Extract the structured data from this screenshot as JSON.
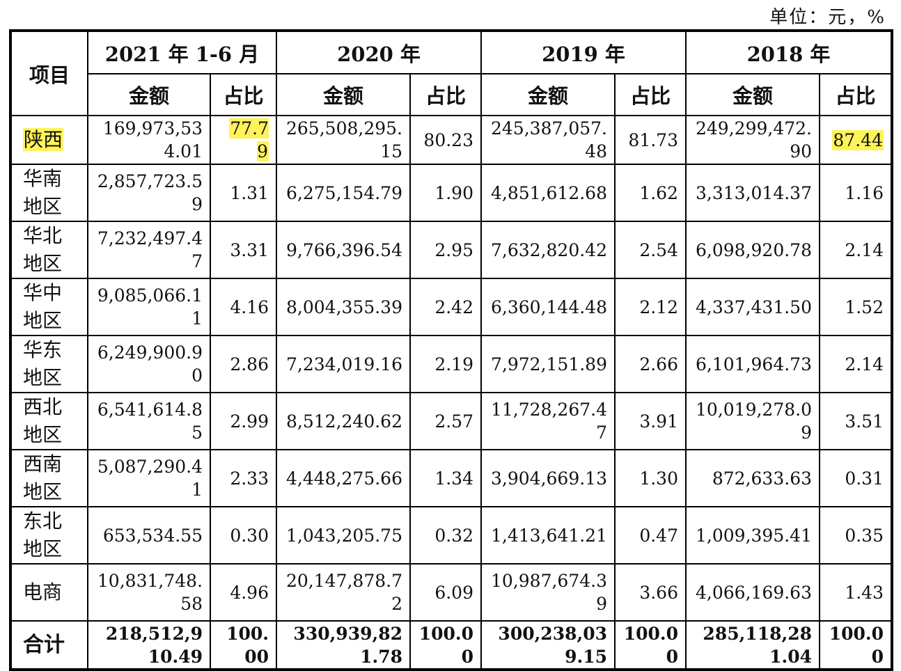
{
  "unit_label": "单位：元，%",
  "header": {
    "item": "项目",
    "periods": [
      "2021 年 1-6 月",
      "2020 年",
      "2019 年",
      "2018 年"
    ],
    "amount": "金额",
    "ratio": "占比"
  },
  "rows": [
    {
      "region": "陕西",
      "highlight": true,
      "cells": [
        [
          "169,973,534.01",
          "77.79"
        ],
        [
          "265,508,295.15",
          "80.23"
        ],
        [
          "245,387,057.48",
          "81.73"
        ],
        [
          "249,299,472.90",
          "87.44"
        ]
      ]
    },
    {
      "region": "华南地区",
      "cells": [
        [
          "2,857,723.59",
          "1.31"
        ],
        [
          "6,275,154.79",
          "1.90"
        ],
        [
          "4,851,612.68",
          "1.62"
        ],
        [
          "3,313,014.37",
          "1.16"
        ]
      ]
    },
    {
      "region": "华北地区",
      "cells": [
        [
          "7,232,497.47",
          "3.31"
        ],
        [
          "9,766,396.54",
          "2.95"
        ],
        [
          "7,632,820.42",
          "2.54"
        ],
        [
          "6,098,920.78",
          "2.14"
        ]
      ]
    },
    {
      "region": "华中地区",
      "cells": [
        [
          "9,085,066.11",
          "4.16"
        ],
        [
          "8,004,355.39",
          "2.42"
        ],
        [
          "6,360,144.48",
          "2.12"
        ],
        [
          "4,337,431.50",
          "1.52"
        ]
      ]
    },
    {
      "region": "华东地区",
      "cells": [
        [
          "6,249,900.90",
          "2.86"
        ],
        [
          "7,234,019.16",
          "2.19"
        ],
        [
          "7,972,151.89",
          "2.66"
        ],
        [
          "6,101,964.73",
          "2.14"
        ]
      ]
    },
    {
      "region": "西北地区",
      "cells": [
        [
          "6,541,614.85",
          "2.99"
        ],
        [
          "8,512,240.62",
          "2.57"
        ],
        [
          "11,728,267.47",
          "3.91"
        ],
        [
          "10,019,278.09",
          "3.51"
        ]
      ]
    },
    {
      "region": "西南地区",
      "cells": [
        [
          "5,087,290.41",
          "2.33"
        ],
        [
          "4,448,275.66",
          "1.34"
        ],
        [
          "3,904,669.13",
          "1.30"
        ],
        [
          "872,633.63",
          "0.31"
        ]
      ]
    },
    {
      "region": "东北地区",
      "cells": [
        [
          "653,534.55",
          "0.30"
        ],
        [
          "1,043,205.75",
          "0.32"
        ],
        [
          "1,413,641.21",
          "0.47"
        ],
        [
          "1,009,395.41",
          "0.35"
        ]
      ]
    },
    {
      "region": "电商",
      "cells": [
        [
          "10,831,748.58",
          "4.96"
        ],
        [
          "20,147,878.72",
          "6.09"
        ],
        [
          "10,987,674.39",
          "3.66"
        ],
        [
          "4,066,169.63",
          "1.43"
        ]
      ]
    }
  ],
  "total": {
    "region": "合计",
    "cells": [
      [
        "218,512,910.49",
        "100.00"
      ],
      [
        "330,939,821.78",
        "100.00"
      ],
      [
        "300,238,039.15",
        "100.00"
      ],
      [
        "285,118,281.04",
        "100.00"
      ]
    ]
  },
  "colors": {
    "highlight": "#fff35a",
    "border": "#000000"
  }
}
